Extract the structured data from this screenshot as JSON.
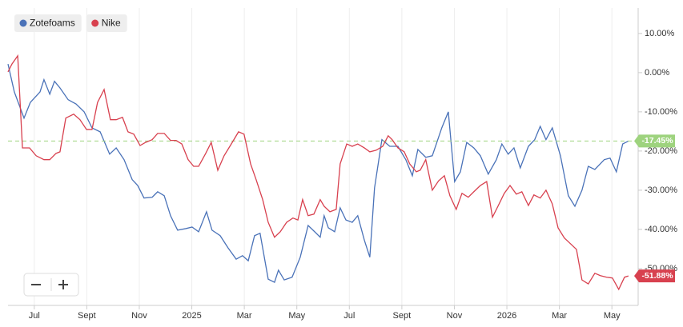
{
  "chart_data": {
    "type": "line",
    "xlim": [
      0,
      24
    ],
    "xticks": [
      {
        "value": 1,
        "label": "Jul"
      },
      {
        "value": 3,
        "label": "Sept"
      },
      {
        "value": 5,
        "label": "Nov"
      },
      {
        "value": 7,
        "label": "2025"
      },
      {
        "value": 9,
        "label": "Mar"
      },
      {
        "value": 11,
        "label": "May"
      },
      {
        "value": 13,
        "label": "Jul"
      },
      {
        "value": 15,
        "label": "Sept"
      },
      {
        "value": 17,
        "label": "Nov"
      },
      {
        "value": 19,
        "label": "2026"
      },
      {
        "value": 21,
        "label": "Mar"
      },
      {
        "value": 23,
        "label": "May"
      }
    ],
    "ylim": [
      -59.4,
      16.5
    ],
    "yticks": [
      {
        "value": 10,
        "label": "10.00%"
      },
      {
        "value": 0,
        "label": "0.00%"
      },
      {
        "value": -10,
        "label": "-10.00%"
      },
      {
        "value": -20,
        "label": "-20.00%"
      },
      {
        "value": -30,
        "label": "-30.00%"
      },
      {
        "value": -40,
        "label": "-40.00%"
      },
      {
        "value": -50,
        "label": "-50.00%"
      }
    ],
    "legend": "top-left",
    "series": [
      {
        "name": "Zotefoams",
        "color": "#4a72b8",
        "reference_line_color": "#9ed37e",
        "x": [
          0,
          0.24,
          0.61,
          0.85,
          1.22,
          1.37,
          1.59,
          1.77,
          1.98,
          2.29,
          2.59,
          2.9,
          3.2,
          3.51,
          3.87,
          4.12,
          4.42,
          4.73,
          4.94,
          5.18,
          5.49,
          5.7,
          5.95,
          6.19,
          6.46,
          6.77,
          7.01,
          7.26,
          7.56,
          7.77,
          8.08,
          8.38,
          8.69,
          8.93,
          9.15,
          9.39,
          9.6,
          9.91,
          10.15,
          10.3,
          10.52,
          10.82,
          11.13,
          11.43,
          11.68,
          11.89,
          12.04,
          12.2,
          12.44,
          12.65,
          12.87,
          13.11,
          13.32,
          13.57,
          13.78,
          13.96,
          14.24,
          14.54,
          14.85,
          15.15,
          15.4,
          15.61,
          15.91,
          16.16,
          16.52,
          16.77,
          17.01,
          17.23,
          17.47,
          17.74,
          17.99,
          18.29,
          18.6,
          18.81,
          19.05,
          19.27,
          19.51,
          19.82,
          20.06,
          20.27,
          20.49,
          20.73,
          21.04,
          21.34,
          21.59,
          21.86,
          22.1,
          22.35,
          22.71,
          22.93,
          23.17,
          23.41,
          23.63
        ],
        "values": [
          2.2,
          -4.9,
          -11.6,
          -7.6,
          -4.9,
          -1.8,
          -5.5,
          -2.2,
          -3.9,
          -6.9,
          -8.0,
          -10.0,
          -14.1,
          -15.1,
          -20.8,
          -19.2,
          -22.2,
          -27.3,
          -28.8,
          -32.0,
          -31.8,
          -30.4,
          -31.4,
          -36.5,
          -40.2,
          -39.8,
          -39.4,
          -40.6,
          -35.5,
          -40.2,
          -41.6,
          -44.7,
          -47.6,
          -46.7,
          -48.0,
          -41.6,
          -41.0,
          -52.7,
          -53.5,
          -50.4,
          -52.9,
          -52.2,
          -47.1,
          -39.0,
          -40.6,
          -42.0,
          -36.5,
          -39.6,
          -40.6,
          -34.5,
          -37.6,
          -38.2,
          -36.5,
          -42.7,
          -47.1,
          -29.4,
          -17.1,
          -18.8,
          -18.8,
          -22.2,
          -26.3,
          -19.6,
          -21.6,
          -21.2,
          -14.1,
          -10.0,
          -27.8,
          -25.3,
          -17.8,
          -19.2,
          -21.2,
          -25.9,
          -22.2,
          -18.2,
          -20.8,
          -19.2,
          -24.3,
          -18.8,
          -17.1,
          -13.7,
          -17.1,
          -14.1,
          -21.2,
          -31.4,
          -34.1,
          -30.0,
          -23.9,
          -24.7,
          -22.2,
          -21.8,
          -25.3,
          -18.2,
          -17.45
        ],
        "value_labels": [
          null,
          null,
          null,
          null,
          null,
          null,
          null,
          null,
          null,
          null,
          null,
          null,
          null,
          null,
          null,
          null,
          null,
          null,
          null,
          null,
          null,
          null,
          null,
          null,
          null,
          null,
          null,
          null,
          null,
          null,
          null,
          null,
          null,
          null,
          null,
          null,
          null,
          null,
          null,
          null,
          null,
          null,
          null,
          null,
          null,
          null,
          null,
          null,
          null,
          null,
          null,
          null,
          null,
          null,
          null,
          null,
          null,
          null,
          null,
          null,
          null,
          null,
          null,
          null,
          null,
          null,
          null,
          null,
          null,
          null,
          null,
          null,
          null,
          null,
          null,
          null,
          null,
          null,
          null,
          null,
          null,
          null,
          null,
          null,
          null,
          null,
          null,
          null,
          null,
          null,
          null,
          null,
          "-17.45%"
        ]
      },
      {
        "name": "Nike",
        "color": "#d8414f",
        "x": [
          0,
          0.15,
          0.37,
          0.55,
          0.82,
          1.07,
          1.37,
          1.59,
          1.83,
          1.98,
          2.2,
          2.5,
          2.74,
          2.99,
          3.2,
          3.41,
          3.66,
          3.9,
          4.12,
          4.36,
          4.57,
          4.79,
          5.03,
          5.24,
          5.49,
          5.7,
          5.95,
          6.19,
          6.4,
          6.62,
          6.86,
          7.07,
          7.26,
          7.53,
          7.74,
          7.99,
          8.23,
          8.54,
          8.78,
          8.99,
          9.24,
          9.45,
          9.7,
          9.91,
          10.15,
          10.37,
          10.61,
          10.85,
          11.04,
          11.22,
          11.43,
          11.65,
          11.89,
          12.04,
          12.26,
          12.5,
          12.65,
          12.9,
          13.11,
          13.32,
          13.57,
          13.78,
          14.02,
          14.27,
          14.48,
          14.63,
          14.85,
          15.09,
          15.3,
          15.55,
          15.7,
          15.91,
          16.16,
          16.4,
          16.62,
          16.83,
          17.07,
          17.29,
          17.53,
          17.74,
          17.99,
          18.23,
          18.45,
          18.66,
          18.9,
          19.12,
          19.36,
          19.57,
          19.82,
          20.03,
          20.27,
          20.49,
          20.73,
          20.95,
          21.19,
          21.43,
          21.65,
          21.86,
          22.1,
          22.35,
          22.56,
          22.8,
          23.02,
          23.26,
          23.48,
          23.63
        ],
        "values": [
          0.2,
          2.2,
          4.3,
          -19.2,
          -19.2,
          -21.2,
          -22.2,
          -22.2,
          -20.6,
          -20.2,
          -11.6,
          -10.6,
          -12.0,
          -14.5,
          -14.5,
          -7.6,
          -4.3,
          -12.0,
          -12.0,
          -11.4,
          -15.1,
          -15.7,
          -18.6,
          -17.8,
          -17.1,
          -15.5,
          -15.5,
          -17.3,
          -17.3,
          -18.2,
          -22.2,
          -23.9,
          -23.9,
          -20.6,
          -17.8,
          -24.9,
          -21.2,
          -17.8,
          -15.1,
          -15.7,
          -23.3,
          -27.3,
          -32.4,
          -38.2,
          -42.0,
          -40.6,
          -38.2,
          -37.1,
          -37.6,
          -32.4,
          -36.5,
          -36.1,
          -32.4,
          -34.1,
          -35.5,
          -34.9,
          -23.3,
          -18.2,
          -18.8,
          -18.2,
          -19.2,
          -20.2,
          -19.8,
          -18.8,
          -16.1,
          -17.1,
          -19.2,
          -20.2,
          -23.3,
          -25.3,
          -24.9,
          -22.2,
          -30.0,
          -27.6,
          -26.3,
          -31.4,
          -34.9,
          -30.8,
          -31.8,
          -30.4,
          -28.8,
          -27.8,
          -36.9,
          -34.1,
          -30.8,
          -28.8,
          -31.0,
          -30.4,
          -33.9,
          -31.2,
          -32.0,
          -30.0,
          -33.5,
          -39.6,
          -42.2,
          -43.7,
          -45.1,
          -52.9,
          -53.9,
          -51.2,
          -51.8,
          -52.2,
          -52.4,
          -55.3,
          -52.2,
          -51.88
        ],
        "value_labels": [
          null,
          null,
          null,
          null,
          null,
          null,
          null,
          null,
          null,
          null,
          null,
          null,
          null,
          null,
          null,
          null,
          null,
          null,
          null,
          null,
          null,
          null,
          null,
          null,
          null,
          null,
          null,
          null,
          null,
          null,
          null,
          null,
          null,
          null,
          null,
          null,
          null,
          null,
          null,
          null,
          null,
          null,
          null,
          null,
          null,
          null,
          null,
          null,
          null,
          null,
          null,
          null,
          null,
          null,
          null,
          null,
          null,
          null,
          null,
          null,
          null,
          null,
          null,
          null,
          null,
          null,
          null,
          null,
          null,
          null,
          null,
          null,
          null,
          null,
          null,
          null,
          null,
          null,
          null,
          null,
          null,
          null,
          null,
          null,
          null,
          null,
          null,
          null,
          null,
          null,
          null,
          null,
          null,
          null,
          null,
          null,
          null,
          null,
          null,
          null,
          null,
          null,
          null,
          null,
          null,
          "-51.88%"
        ]
      }
    ]
  }
}
